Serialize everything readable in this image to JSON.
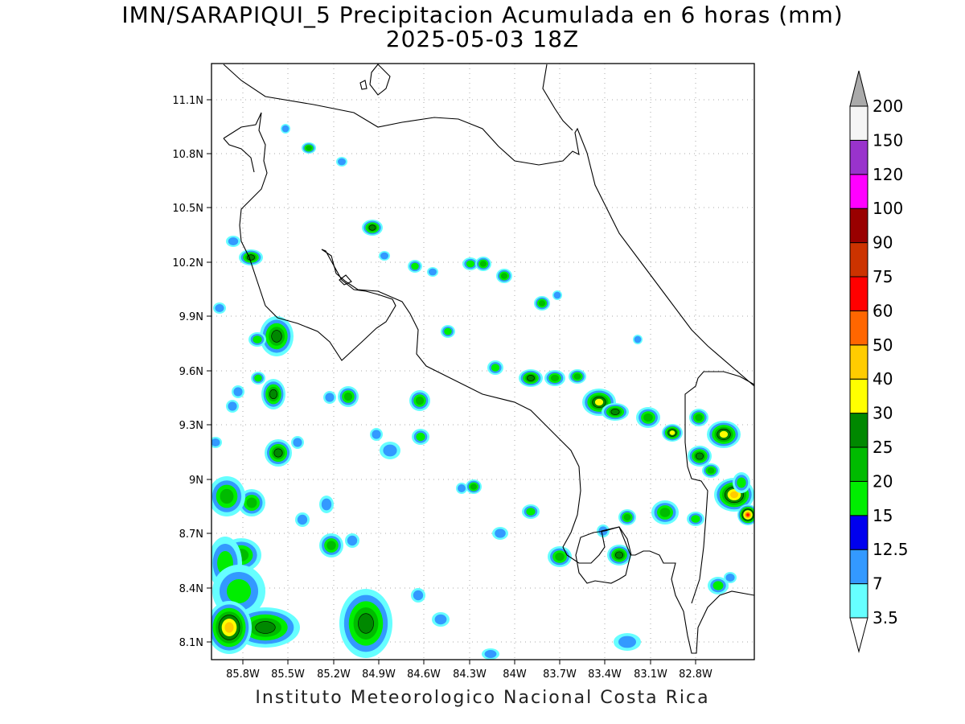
{
  "title": {
    "line1": "IMN/SARAPIQUI_5 Precipitacion Acumulada en 6 horas (mm)",
    "line2": "2025-05-03 18Z"
  },
  "footer": "Instituto Meteorologico Nacional Costa Rica",
  "map": {
    "lon_range": [
      -86.05,
      -82.57
    ],
    "lat_range": [
      8.0,
      11.3
    ],
    "grid": true,
    "x_ticks": [
      "85.8W",
      "85.5W",
      "85.2W",
      "84.9W",
      "84.6W",
      "84.3W",
      "84W",
      "83.7W",
      "83.4W",
      "83.1W",
      "82.8W"
    ],
    "y_ticks": [
      "11.1N",
      "10.8N",
      "10.5N",
      "10.2N",
      "9.9N",
      "9.6N",
      "9.3N",
      "9N",
      "8.7N",
      "8.4N",
      "8.1N"
    ]
  },
  "colorbar": {
    "labels": [
      "3.5",
      "7",
      "12.5",
      "15",
      "20",
      "25",
      "30",
      "40",
      "50",
      "60",
      "75",
      "90",
      "100",
      "120",
      "150",
      "200"
    ],
    "colors": [
      "#ffffff",
      "#66ffff",
      "#3399ff",
      "#0000ee",
      "#00ee00",
      "#00bb00",
      "#008800",
      "#ffff00",
      "#ffcc00",
      "#ff6600",
      "#ff0000",
      "#cc3300",
      "#990000",
      "#ff00ff",
      "#9933cc",
      "#f5f5f5",
      "#aaaaaa"
    ]
  },
  "colors": {
    "coast": "#000000",
    "grid": "#aaaaaa"
  }
}
